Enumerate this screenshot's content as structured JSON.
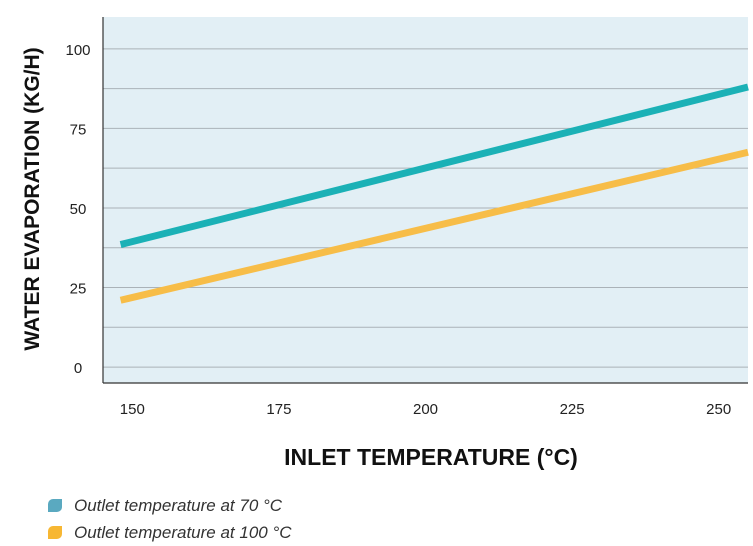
{
  "colors": {
    "plot_bg": "#e2eff5",
    "grid": "#aab2b8",
    "axis": "#333333"
  },
  "chart_data": {
    "type": "line",
    "title": "",
    "xlabel": "INLET TEMPERATURE (°C)",
    "ylabel": "WATER EVAPORATION (KG/H)",
    "xlim": [
      145,
      255
    ],
    "ylim": [
      -5,
      110
    ],
    "x_ticks": [
      150,
      175,
      200,
      225,
      250
    ],
    "y_ticks": [
      0,
      25,
      50,
      75,
      100
    ],
    "grid": true,
    "series": [
      {
        "name": "Outlet temperature at 70 °C",
        "color": "#1bb1b6",
        "x": [
          148,
          255
        ],
        "y": [
          38.5,
          88
        ]
      },
      {
        "name": "Outlet temperature at 100 °C",
        "color": "#f7bd48",
        "x": [
          148,
          255
        ],
        "y": [
          21,
          67.5
        ]
      }
    ],
    "legend": {
      "placement": "bottom-left"
    }
  }
}
